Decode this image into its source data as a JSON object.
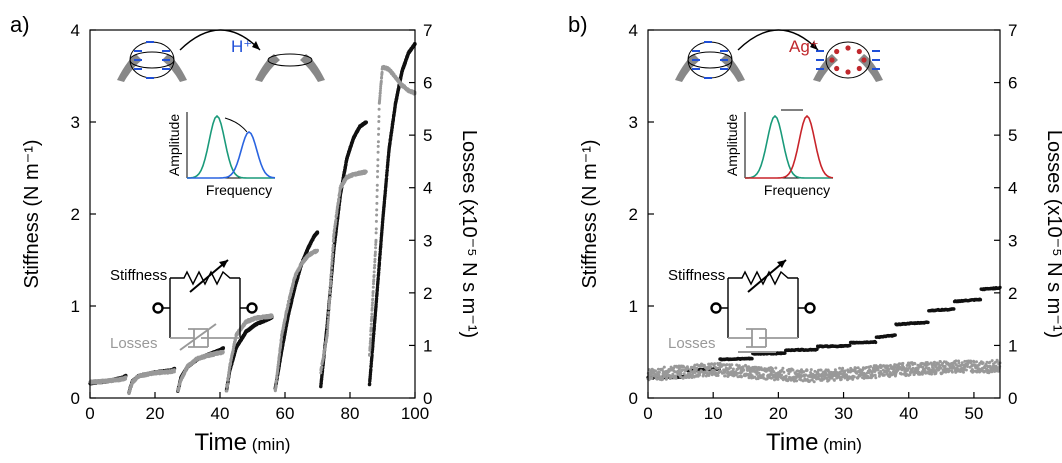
{
  "panels": [
    {
      "letter": "a)",
      "xlabel": "Time",
      "xunit": "(min)",
      "ylabel_left": "Stiffness (N m⁻¹)",
      "ylabel_right": "Losses (x10⁻⁵ N s m⁻¹)",
      "ion": "H⁺",
      "inset_ylabel": "Amplitude",
      "inset_xlabel": "Frequency",
      "circuit_stiffness": "Stiffness",
      "circuit_losses": "Losses"
    },
    {
      "letter": "b)",
      "xlabel": "Time",
      "xunit": "(min)",
      "ylabel_left": "Stiffness (N m⁻¹)",
      "ylabel_right": "Losses (x10⁻⁵ N s m⁻¹)",
      "ion": "Ag⁺",
      "inset_ylabel": "Amplitude",
      "inset_xlabel": "Frequency",
      "circuit_stiffness": "Stiffness",
      "circuit_losses": "Losses"
    }
  ],
  "colors": {
    "stiffness": "#111111",
    "losses": "#999999",
    "ion_h": "#1f4fd8",
    "ion_ag": "#c0282d",
    "peak1": "#1a9a7a",
    "peak_h": "#2a64e0",
    "peak_ag": "#c8242a"
  },
  "chart_data": [
    {
      "type": "scatter",
      "xlim": [
        0,
        100
      ],
      "ylim_left": [
        0,
        4
      ],
      "ylim_right": [
        0,
        7
      ],
      "x_ticks": [
        0,
        20,
        40,
        60,
        80,
        100
      ],
      "y_ticks_left": [
        0,
        1,
        2,
        3,
        4
      ],
      "y_ticks_right": [
        0,
        1,
        2,
        3,
        4,
        5,
        6,
        7
      ],
      "series": [
        {
          "axis": "left",
          "segments": [
            [
              [
                0,
                0.16
              ],
              [
                5,
                0.18
              ],
              [
                10,
                0.22
              ],
              [
                11,
                0.24
              ]
            ],
            [
              [
                12,
                0.06
              ],
              [
                13,
                0.18
              ],
              [
                15,
                0.24
              ],
              [
                20,
                0.28
              ],
              [
                25,
                0.3
              ],
              [
                26,
                0.32
              ]
            ],
            [
              [
                27,
                0.07
              ],
              [
                28,
                0.22
              ],
              [
                30,
                0.34
              ],
              [
                33,
                0.42
              ],
              [
                37,
                0.48
              ],
              [
                40,
                0.52
              ],
              [
                41,
                0.54
              ]
            ],
            [
              [
                42,
                0.08
              ],
              [
                43,
                0.3
              ],
              [
                45,
                0.55
              ],
              [
                48,
                0.72
              ],
              [
                51,
                0.8
              ],
              [
                55,
                0.86
              ],
              [
                56,
                0.88
              ]
            ],
            [
              [
                57,
                0.1
              ],
              [
                59,
                0.52
              ],
              [
                61,
                0.9
              ],
              [
                63,
                1.2
              ],
              [
                65,
                1.45
              ],
              [
                67,
                1.62
              ],
              [
                69,
                1.76
              ],
              [
                70,
                1.8
              ]
            ],
            [
              [
                71,
                0.12
              ],
              [
                73,
                0.8
              ],
              [
                75,
                1.6
              ],
              [
                77,
                2.2
              ],
              [
                79,
                2.6
              ],
              [
                81,
                2.82
              ],
              [
                83,
                2.95
              ],
              [
                85,
                3.0
              ]
            ],
            [
              [
                86,
                0.14
              ],
              [
                88,
                1.0
              ],
              [
                90,
                1.9
              ],
              [
                92,
                2.7
              ],
              [
                94,
                3.2
              ],
              [
                96,
                3.55
              ],
              [
                98,
                3.75
              ],
              [
                100,
                3.85
              ]
            ]
          ]
        },
        {
          "axis": "right",
          "segments": [
            [
              [
                0,
                0.3
              ],
              [
                5,
                0.32
              ],
              [
                10,
                0.36
              ],
              [
                11,
                0.38
              ]
            ],
            [
              [
                12,
                0.1
              ],
              [
                13,
                0.3
              ],
              [
                15,
                0.42
              ],
              [
                20,
                0.48
              ],
              [
                25,
                0.5
              ],
              [
                26,
                0.52
              ]
            ],
            [
              [
                27,
                0.12
              ],
              [
                28,
                0.35
              ],
              [
                30,
                0.6
              ],
              [
                33,
                0.75
              ],
              [
                37,
                0.82
              ],
              [
                40,
                0.86
              ],
              [
                41,
                0.88
              ]
            ],
            [
              [
                42,
                0.12
              ],
              [
                43,
                0.6
              ],
              [
                45,
                1.2
              ],
              [
                48,
                1.45
              ],
              [
                51,
                1.52
              ],
              [
                55,
                1.55
              ],
              [
                56,
                1.56
              ]
            ],
            [
              [
                57,
                0.14
              ],
              [
                59,
                1.2
              ],
              [
                61,
                1.8
              ],
              [
                63,
                2.3
              ],
              [
                65,
                2.55
              ],
              [
                67,
                2.7
              ],
              [
                69,
                2.78
              ],
              [
                70,
                2.8
              ]
            ],
            [
              [
                71,
                0.5
              ],
              [
                73,
                1.2
              ],
              [
                75,
                3.1
              ],
              [
                77,
                4.0
              ],
              [
                79,
                4.2
              ],
              [
                81,
                4.25
              ],
              [
                83,
                4.28
              ],
              [
                85,
                4.3
              ]
            ],
            [
              [
                86,
                0.8
              ],
              [
                88,
                3.0
              ],
              [
                89,
                5.6
              ],
              [
                90,
                6.3
              ],
              [
                92,
                6.25
              ],
              [
                94,
                6.1
              ],
              [
                96,
                5.95
              ],
              [
                98,
                5.85
              ],
              [
                100,
                5.8
              ]
            ]
          ]
        }
      ]
    },
    {
      "type": "scatter",
      "xlim": [
        0,
        54
      ],
      "ylim_left": [
        0,
        4
      ],
      "ylim_right": [
        0,
        7
      ],
      "x_ticks": [
        0,
        10,
        20,
        30,
        40,
        50
      ],
      "y_ticks_left": [
        0,
        1,
        2,
        3,
        4
      ],
      "y_ticks_right": [
        0,
        1,
        2,
        3,
        4,
        5,
        6,
        7
      ],
      "series": [
        {
          "axis": "left",
          "steps": [
            [
              0,
              0.22
            ],
            [
              6,
              0.3
            ],
            [
              11,
              0.42
            ],
            [
              16,
              0.48
            ],
            [
              21,
              0.52
            ],
            [
              26,
              0.56
            ],
            [
              31,
              0.6
            ],
            [
              35,
              0.66
            ],
            [
              38,
              0.8
            ],
            [
              43,
              0.95
            ],
            [
              47,
              1.05
            ],
            [
              51,
              1.18
            ],
            [
              54,
              1.3
            ]
          ]
        },
        {
          "axis": "right",
          "band": [
            [
              0,
              0.45
            ],
            [
              6,
              0.5
            ],
            [
              10,
              0.55
            ],
            [
              15,
              0.5
            ],
            [
              20,
              0.45
            ],
            [
              25,
              0.42
            ],
            [
              30,
              0.45
            ],
            [
              35,
              0.5
            ],
            [
              40,
              0.55
            ],
            [
              45,
              0.58
            ],
            [
              50,
              0.6
            ],
            [
              54,
              0.6
            ]
          ],
          "spread": 0.12
        }
      ]
    }
  ]
}
